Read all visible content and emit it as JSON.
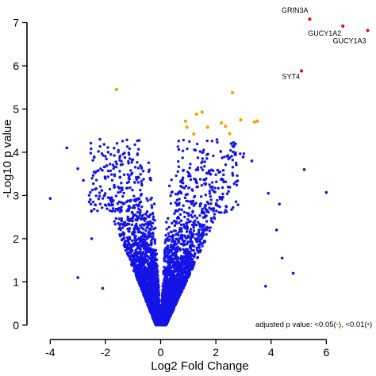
{
  "chart_data": {
    "type": "scatter",
    "xlabel": "Log2 Fold Change",
    "ylabel": "-Log10 p value",
    "xlim": [
      -4.9,
      7.8
    ],
    "ylim": [
      -0.15,
      7.45
    ],
    "xticks": [
      -4,
      -2,
      0,
      2,
      4,
      6
    ],
    "yticks": [
      0,
      1,
      2,
      3,
      4,
      5,
      6,
      7
    ],
    "grid": false,
    "colors": {
      "not_significant": "#1414e6",
      "fdr_0_05": "#f5a000",
      "fdr_0_01": "#e01010"
    },
    "legend": {
      "position": "bottom-right",
      "prefix": "adjusted p value: <0.05(",
      "middle": "), <0.01(",
      "suffix": ")"
    },
    "significant_fdr_0_05": [
      {
        "x": -1.6,
        "y": 5.45
      },
      {
        "x": 0.9,
        "y": 4.72
      },
      {
        "x": 0.95,
        "y": 4.58
      },
      {
        "x": 1.3,
        "y": 4.88
      },
      {
        "x": 1.5,
        "y": 4.93
      },
      {
        "x": 1.2,
        "y": 4.42
      },
      {
        "x": 1.7,
        "y": 4.58
      },
      {
        "x": 2.2,
        "y": 4.68
      },
      {
        "x": 2.35,
        "y": 4.6
      },
      {
        "x": 2.5,
        "y": 4.43
      },
      {
        "x": 2.6,
        "y": 5.38
      },
      {
        "x": 2.9,
        "y": 4.75
      },
      {
        "x": 3.4,
        "y": 4.7
      },
      {
        "x": 3.5,
        "y": 4.72
      }
    ],
    "significant_fdr_0_01": [
      {
        "x": 5.4,
        "y": 7.08,
        "label": "GRIN3A"
      },
      {
        "x": 6.6,
        "y": 6.92,
        "label": "GUCY1A2"
      },
      {
        "x": 7.5,
        "y": 6.82,
        "label": "GUCY1A3"
      },
      {
        "x": 5.1,
        "y": 5.88,
        "label": "SYT4"
      }
    ],
    "not_significant_envelope": {
      "left_side": [
        [
          -0.1,
          0.05
        ],
        [
          -0.5,
          1.0
        ],
        [
          -1.0,
          2.0
        ],
        [
          -1.5,
          3.0
        ],
        [
          -2.0,
          3.8
        ],
        [
          -2.6,
          4.2
        ]
      ],
      "right_side": [
        [
          0.1,
          0.05
        ],
        [
          0.6,
          1.0
        ],
        [
          1.2,
          2.0
        ],
        [
          1.8,
          3.0
        ],
        [
          2.5,
          3.7
        ],
        [
          3.2,
          4.0
        ]
      ],
      "outliers": [
        {
          "x": -4.0,
          "y": 2.93
        },
        {
          "x": -3.4,
          "y": 4.1
        },
        {
          "x": -3.0,
          "y": 3.62
        },
        {
          "x": -2.8,
          "y": 3.35
        },
        {
          "x": -2.2,
          "y": 4.3
        },
        {
          "x": -2.5,
          "y": 2.0
        },
        {
          "x": -3.0,
          "y": 1.1
        },
        {
          "x": -2.1,
          "y": 0.85
        },
        {
          "x": -1.9,
          "y": 4.0
        },
        {
          "x": 3.9,
          "y": 3.05
        },
        {
          "x": 4.2,
          "y": 2.2
        },
        {
          "x": 4.4,
          "y": 1.55
        },
        {
          "x": 4.8,
          "y": 1.2
        },
        {
          "x": 5.2,
          "y": 3.6
        },
        {
          "x": 6.0,
          "y": 3.07
        },
        {
          "x": 4.3,
          "y": 2.8
        },
        {
          "x": 3.8,
          "y": 0.9
        },
        {
          "x": 3.3,
          "y": 3.8
        }
      ]
    }
  }
}
